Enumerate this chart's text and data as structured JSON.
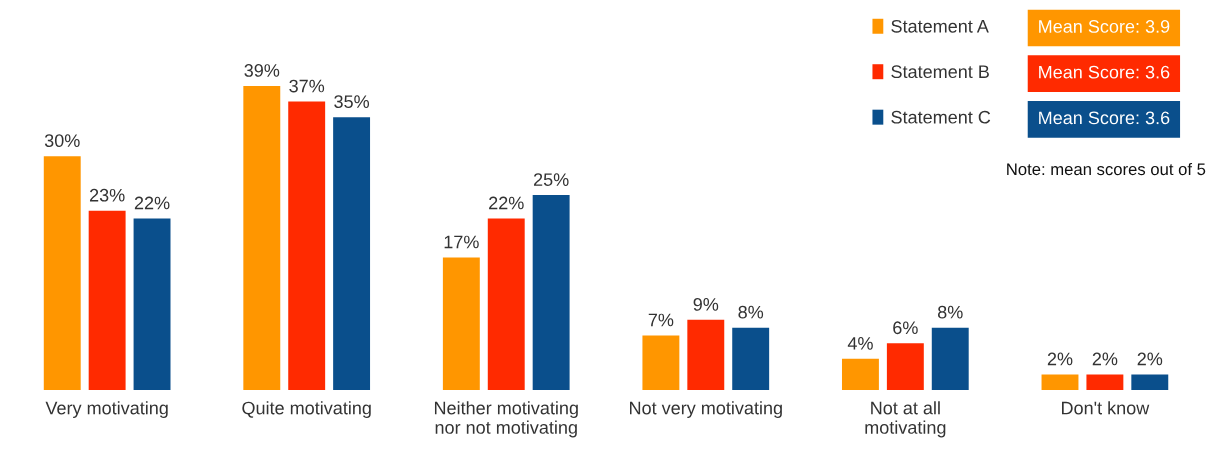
{
  "chart_data": {
    "type": "bar",
    "categories": [
      "Very motivating",
      "Quite motivating",
      "Neither motivating\nnor not motivating",
      "Not very motivating",
      "Not at all\nmotivating",
      "Don't know"
    ],
    "series": [
      {
        "name": "Statement A",
        "color": "#ff9600",
        "values": [
          30,
          39,
          17,
          7,
          4,
          2
        ],
        "value_labels": [
          "30%",
          "39%",
          "17%",
          "7%",
          "4%",
          "2%"
        ]
      },
      {
        "name": "Statement B",
        "color": "#ff2a00",
        "values": [
          23,
          37,
          22,
          9,
          6,
          2
        ],
        "value_labels": [
          "23%",
          "37%",
          "22%",
          "9%",
          "6%",
          "2%"
        ]
      },
      {
        "name": "Statement C",
        "color": "#0a4f8c",
        "values": [
          22,
          35,
          25,
          8,
          8,
          2
        ],
        "value_labels": [
          "22%",
          "35%",
          "25%",
          "8%",
          "8%",
          "2%"
        ]
      }
    ],
    "grid": false,
    "legend": "top right",
    "annotations": [
      "Mean Score: 3.9",
      "Mean Score: 3.6",
      "Mean Score: 3.6",
      "Note: mean scores out of 5"
    ]
  }
}
